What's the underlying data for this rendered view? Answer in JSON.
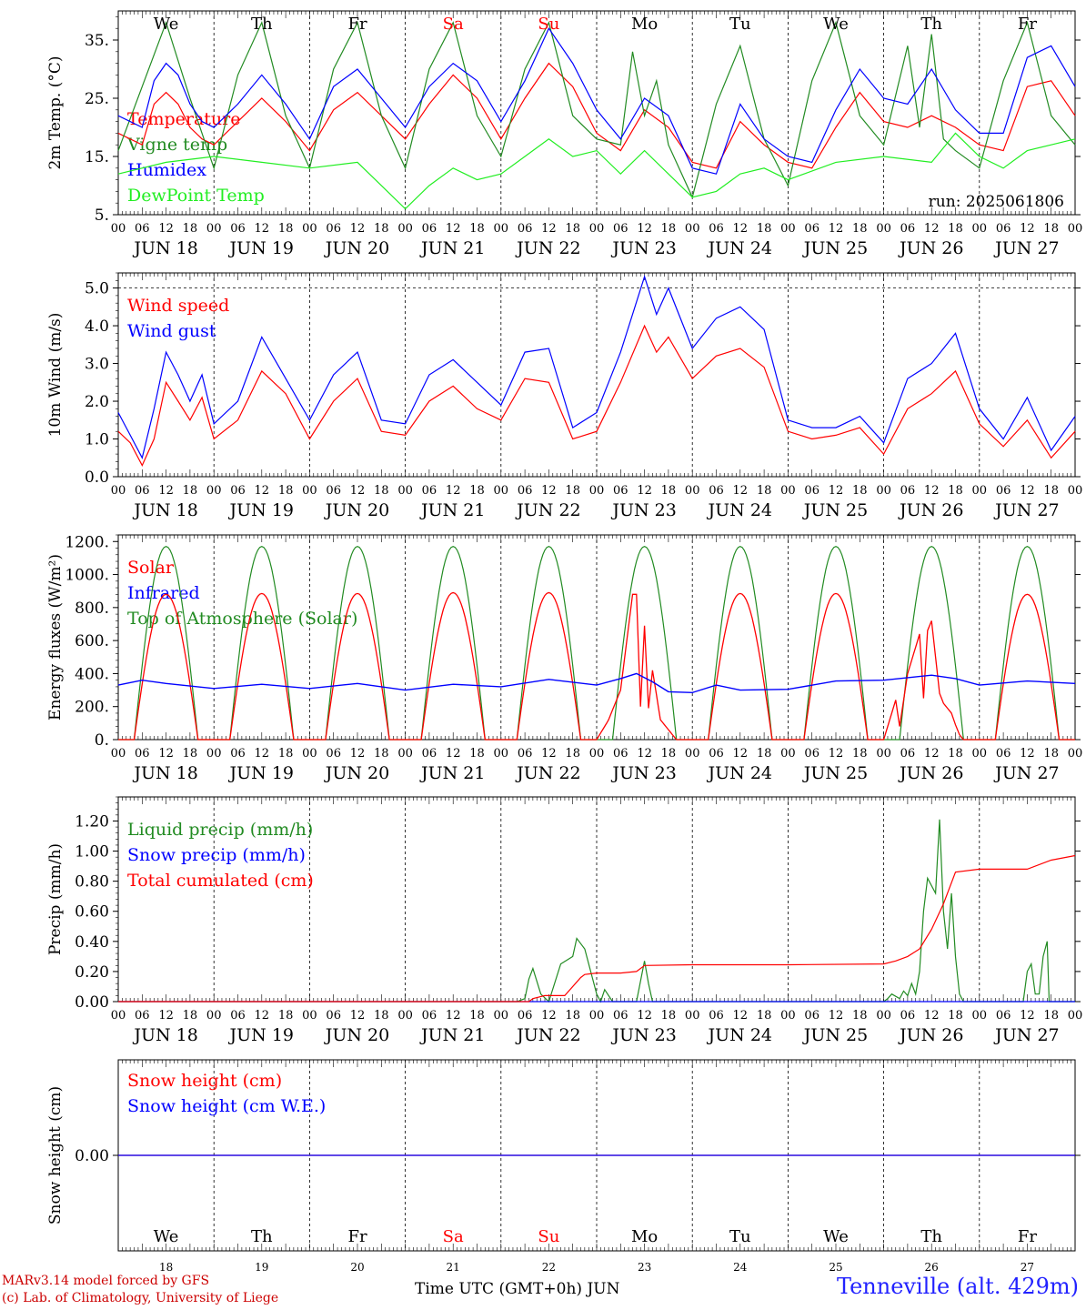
{
  "header": {
    "run_label": "run: 2025061806"
  },
  "footer": {
    "credit_line1": "MARv3.14 model forced by GFS",
    "credit_line2": "(c) Lab. of Climatology, University of Liege",
    "x_title": "Time UTC (GMT+0h) JUN",
    "station": "Tenneville (alt. 429m)"
  },
  "colors": {
    "red": "#ff0000",
    "darkgreen": "#228b22",
    "blue": "#0000ff",
    "lightgreen": "#22ee22",
    "credit": "#cc0000",
    "station": "#2222ff"
  },
  "days": {
    "dates": [
      "JUN 18",
      "JUN 19",
      "JUN 20",
      "JUN 21",
      "JUN 22",
      "JUN 23",
      "JUN 24",
      "JUN 25",
      "JUN 26",
      "JUN 27"
    ],
    "weekdays": [
      "We",
      "Th",
      "Fr",
      "Sa",
      "Su",
      "Mo",
      "Tu",
      "We",
      "Th",
      "Fr"
    ],
    "weekday_colors": [
      "#000000",
      "#000000",
      "#000000",
      "#ff0000",
      "#ff0000",
      "#000000",
      "#000000",
      "#000000",
      "#000000",
      "#000000"
    ],
    "day_numbers": [
      "18",
      "19",
      "20",
      "21",
      "22",
      "23",
      "24",
      "25",
      "26",
      "27"
    ],
    "hour_labels": [
      "00",
      "06",
      "12",
      "18"
    ],
    "final_hour_label": "00"
  },
  "chart_data": [
    {
      "type": "line",
      "panel": "temperature",
      "ylabel": "2m Temp. (°C)",
      "ylim": [
        5,
        40
      ],
      "yticks": [
        5,
        15,
        25,
        35
      ],
      "ytick_labels": [
        "5.",
        "15.",
        "25.",
        "35."
      ],
      "x_unit": "hours since JUN 18 00 UTC",
      "series": [
        {
          "name": "Temperature",
          "color": "#ff0000",
          "x": [
            0,
            6,
            9,
            12,
            15,
            18,
            21,
            24,
            30,
            36,
            42,
            48,
            54,
            60,
            66,
            72,
            78,
            84,
            90,
            96,
            102,
            108,
            114,
            120,
            126,
            132,
            138,
            144,
            150,
            156,
            162,
            168,
            174,
            180,
            186,
            192,
            198,
            204,
            210,
            216,
            222,
            228,
            234,
            240
          ],
          "y": [
            19,
            17,
            24,
            26,
            24,
            20,
            18,
            17,
            21,
            25,
            21,
            16,
            23,
            26,
            22,
            18,
            24,
            29,
            25,
            18,
            25,
            31,
            27,
            19,
            16,
            23,
            20,
            14,
            13,
            21,
            17,
            14,
            13,
            20,
            26,
            21,
            20,
            22,
            20,
            17,
            16,
            27,
            28,
            22
          ]
        },
        {
          "name": "Vigne temp",
          "color": "#228b22",
          "x": [
            0,
            6,
            12,
            18,
            24,
            30,
            36,
            42,
            48,
            54,
            60,
            66,
            72,
            78,
            84,
            90,
            96,
            102,
            108,
            114,
            120,
            126,
            129,
            132,
            135,
            138,
            144,
            150,
            156,
            162,
            168,
            174,
            180,
            186,
            192,
            198,
            201,
            204,
            207,
            210,
            216,
            222,
            228,
            234,
            240
          ],
          "y": [
            16,
            27,
            38,
            25,
            13,
            29,
            38,
            22,
            13,
            30,
            38,
            22,
            13,
            30,
            38,
            22,
            15,
            30,
            38,
            22,
            18,
            17,
            33,
            22,
            28,
            17,
            8,
            24,
            34,
            18,
            10,
            28,
            38,
            22,
            17,
            34,
            20,
            36,
            18,
            16,
            13,
            28,
            38,
            22,
            17
          ]
        },
        {
          "name": "Humidex",
          "color": "#0000ff",
          "x": [
            0,
            6,
            9,
            12,
            15,
            18,
            21,
            24,
            30,
            36,
            42,
            48,
            54,
            60,
            66,
            72,
            78,
            84,
            90,
            96,
            102,
            108,
            114,
            120,
            126,
            132,
            138,
            144,
            150,
            156,
            162,
            168,
            174,
            180,
            186,
            192,
            198,
            204,
            210,
            216,
            222,
            228,
            234,
            240
          ],
          "y": [
            22,
            20,
            28,
            31,
            29,
            24,
            21,
            20,
            24,
            29,
            24,
            18,
            27,
            30,
            25,
            20,
            27,
            31,
            28,
            21,
            28,
            37,
            31,
            23,
            18,
            25,
            22,
            13,
            12,
            24,
            18,
            15,
            14,
            23,
            30,
            25,
            24,
            30,
            23,
            19,
            19,
            32,
            34,
            27
          ]
        },
        {
          "name": "DewPoint Temp",
          "color": "#22ee22",
          "x": [
            0,
            12,
            24,
            36,
            48,
            60,
            72,
            78,
            84,
            90,
            96,
            102,
            108,
            114,
            120,
            126,
            132,
            138,
            144,
            150,
            156,
            162,
            168,
            180,
            192,
            204,
            210,
            216,
            222,
            228,
            234,
            240
          ],
          "y": [
            12,
            14,
            15,
            14,
            13,
            14,
            6,
            10,
            13,
            11,
            12,
            15,
            18,
            15,
            16,
            12,
            16,
            12,
            8,
            9,
            12,
            13,
            11,
            14,
            15,
            14,
            19,
            15,
            13,
            16,
            17,
            18
          ]
        }
      ]
    },
    {
      "type": "line",
      "panel": "wind",
      "ylabel": "10m Wind (m/s)",
      "ylim": [
        0,
        5.4
      ],
      "yticks": [
        0,
        1,
        2,
        3,
        4,
        5
      ],
      "ytick_labels": [
        "0.0",
        "1.0",
        "2.0",
        "3.0",
        "4.0",
        "5.0"
      ],
      "dashed_reference_y": 5.0,
      "x_unit": "hours since JUN 18 00 UTC",
      "series": [
        {
          "name": "Wind speed",
          "color": "#ff0000",
          "x": [
            0,
            3,
            6,
            9,
            12,
            15,
            18,
            21,
            24,
            30,
            36,
            42,
            48,
            54,
            60,
            66,
            72,
            78,
            84,
            90,
            96,
            102,
            108,
            114,
            120,
            126,
            132,
            135,
            138,
            144,
            150,
            156,
            162,
            168,
            174,
            180,
            186,
            192,
            198,
            204,
            210,
            216,
            222,
            228,
            234,
            240
          ],
          "y": [
            1.2,
            0.9,
            0.3,
            1.0,
            2.5,
            2.0,
            1.5,
            2.1,
            1.0,
            1.5,
            2.8,
            2.2,
            1.0,
            2.0,
            2.6,
            1.2,
            1.1,
            2.0,
            2.4,
            1.8,
            1.5,
            2.6,
            2.5,
            1.0,
            1.2,
            2.5,
            4.0,
            3.3,
            3.7,
            2.6,
            3.2,
            3.4,
            2.9,
            1.2,
            1.0,
            1.1,
            1.3,
            0.6,
            1.8,
            2.2,
            2.8,
            1.4,
            0.8,
            1.5,
            0.5,
            1.2
          ]
        },
        {
          "name": "Wind gust",
          "color": "#0000ff",
          "x": [
            0,
            3,
            6,
            9,
            12,
            15,
            18,
            21,
            24,
            30,
            36,
            42,
            48,
            54,
            60,
            66,
            72,
            78,
            84,
            90,
            96,
            102,
            108,
            114,
            120,
            126,
            132,
            135,
            138,
            144,
            150,
            156,
            162,
            168,
            174,
            180,
            186,
            192,
            198,
            204,
            210,
            216,
            222,
            228,
            234,
            240
          ],
          "y": [
            1.7,
            1.1,
            0.5,
            1.8,
            3.3,
            2.7,
            2.0,
            2.7,
            1.4,
            2.0,
            3.7,
            2.6,
            1.5,
            2.7,
            3.3,
            1.5,
            1.4,
            2.7,
            3.1,
            2.5,
            1.9,
            3.3,
            3.4,
            1.3,
            1.7,
            3.3,
            5.3,
            4.3,
            5.0,
            3.4,
            4.2,
            4.5,
            3.9,
            1.5,
            1.3,
            1.3,
            1.6,
            0.9,
            2.6,
            3.0,
            3.8,
            1.8,
            1.0,
            2.1,
            0.7,
            1.6
          ]
        }
      ]
    },
    {
      "type": "line",
      "panel": "energy",
      "ylabel": "Energy fluxes (W/m²)",
      "ylim": [
        0,
        1240
      ],
      "yticks": [
        0,
        200,
        400,
        600,
        800,
        1000,
        1200
      ],
      "ytick_labels": [
        "0.",
        "200.",
        "400.",
        "600.",
        "800.",
        "1000.",
        "1200."
      ],
      "x_unit": "hours since JUN 18 00 UTC",
      "daily_cycle": {
        "sunrise_hour": 4,
        "sunset_hour": 20,
        "toa_peak": 1170
      },
      "series": [
        {
          "name": "Solar",
          "color": "#ff0000",
          "day_peaks": [
            880,
            885,
            885,
            890,
            890,
            880,
            885,
            885,
            880,
            880
          ],
          "overrides": [
            {
              "x": [
                120,
                123,
                126,
                129,
                130,
                131,
                132,
                133,
                134,
                136,
                138,
                140,
                144
              ],
              "y": [
                0,
                120,
                300,
                880,
                880,
                200,
                690,
                190,
                420,
                120,
                60,
                0,
                0
              ]
            },
            {
              "x": [
                192,
                195,
                196,
                198,
                201,
                202,
                203,
                204,
                206,
                207,
                209,
                210,
                211,
                212,
                216
              ],
              "y": [
                0,
                240,
                80,
                400,
                640,
                250,
                660,
                720,
                280,
                220,
                160,
                90,
                30,
                0,
                0
              ]
            }
          ]
        },
        {
          "name": "Infrared",
          "color": "#0000ff",
          "x": [
            0,
            6,
            12,
            24,
            36,
            48,
            60,
            72,
            84,
            96,
            108,
            120,
            126,
            130,
            134,
            138,
            144,
            150,
            156,
            168,
            180,
            192,
            204,
            210,
            216,
            228,
            240
          ],
          "y": [
            330,
            360,
            340,
            310,
            335,
            310,
            340,
            300,
            335,
            320,
            365,
            330,
            370,
            400,
            350,
            290,
            285,
            330,
            300,
            305,
            355,
            360,
            390,
            370,
            330,
            355,
            340
          ]
        },
        {
          "name": "Top of Atmosphere (Solar)",
          "color": "#228b22"
        }
      ]
    },
    {
      "type": "line",
      "panel": "precip",
      "ylabel": "Precip (mm/h)",
      "ylim": [
        0,
        1.36
      ],
      "yticks": [
        0,
        0.2,
        0.4,
        0.6,
        0.8,
        1.0,
        1.2
      ],
      "ytick_labels": [
        "0.00",
        "0.20",
        "0.40",
        "0.60",
        "0.80",
        "1.00",
        "1.20"
      ],
      "x_unit": "hours since JUN 18 00 UTC",
      "series": [
        {
          "name": "Liquid precip (mm/h)",
          "color": "#228b22",
          "x": [
            0,
            100,
            102,
            103,
            104,
            106,
            108,
            111,
            114,
            115,
            117,
            120,
            121,
            122,
            124,
            126,
            130,
            132,
            133,
            134,
            136,
            192,
            193,
            194,
            196,
            197,
            198,
            199,
            200,
            201,
            202,
            203,
            205,
            206,
            207,
            208,
            209,
            210,
            211,
            212,
            213,
            216,
            227,
            228,
            229,
            230,
            231,
            232,
            233,
            233.5,
            234,
            240
          ],
          "y": [
            0,
            0,
            0.02,
            0.15,
            0.22,
            0.05,
            0,
            0.25,
            0.3,
            0.42,
            0.35,
            0.05,
            0,
            0.08,
            0.0,
            0,
            0,
            0.27,
            0.12,
            0,
            0,
            0,
            0.02,
            0.05,
            0.02,
            0.07,
            0.04,
            0.12,
            0.05,
            0.2,
            0.6,
            0.82,
            0.72,
            1.21,
            0.6,
            0.35,
            0.72,
            0.3,
            0.05,
            0,
            0,
            0,
            0,
            0.2,
            0.25,
            0.05,
            0.05,
            0.3,
            0.4,
            0,
            0,
            0
          ]
        },
        {
          "name": "Snow precip (mm/h)",
          "color": "#0000ff",
          "x": [
            0,
            240
          ],
          "y": [
            0,
            0
          ]
        },
        {
          "name": "Total cumulated (cm)",
          "color": "#ff0000",
          "x": [
            0,
            103,
            104,
            107,
            112,
            116,
            117,
            120,
            126,
            130,
            132,
            144,
            168,
            192,
            195,
            198,
            201,
            204,
            207,
            210,
            216,
            228,
            234,
            240
          ],
          "y": [
            0,
            0,
            0.02,
            0.04,
            0.04,
            0.16,
            0.18,
            0.19,
            0.19,
            0.2,
            0.24,
            0.245,
            0.245,
            0.25,
            0.27,
            0.3,
            0.35,
            0.48,
            0.65,
            0.86,
            0.88,
            0.88,
            0.94,
            0.97
          ]
        }
      ]
    },
    {
      "type": "line",
      "panel": "snow",
      "ylabel": "Snow height (cm)",
      "ylim": [
        -1,
        1
      ],
      "yticks": [
        0
      ],
      "ytick_labels": [
        "0.00"
      ],
      "x_unit": "hours since JUN 18 00 UTC",
      "series": [
        {
          "name": "Snow height (cm)",
          "color": "#ff0000",
          "x": [
            0,
            240
          ],
          "y": [
            0,
            0
          ]
        },
        {
          "name": "Snow height (cm W.E.)",
          "color": "#0000ff",
          "x": [
            0,
            240
          ],
          "y": [
            0,
            0
          ]
        }
      ]
    }
  ]
}
